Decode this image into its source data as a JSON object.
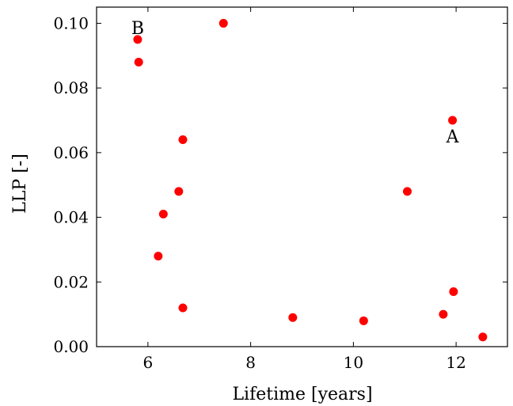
{
  "chart_data": {
    "type": "scatter",
    "xlabel": "Lifetime [years]",
    "ylabel": "LLP [-]",
    "xlim": [
      5.0,
      13.0
    ],
    "ylim": [
      0.0,
      0.105
    ],
    "xticks": [
      6,
      8,
      10,
      12
    ],
    "xtick_labels": [
      "6",
      "8",
      "10",
      "12"
    ],
    "yticks": [
      0.0,
      0.02,
      0.04,
      0.06,
      0.08,
      0.1
    ],
    "ytick_labels": [
      "0.00",
      "0.02",
      "0.04",
      "0.06",
      "0.08",
      "0.10"
    ],
    "grid": false,
    "marker_color": "#ff0000",
    "points": [
      {
        "x": 5.8,
        "y": 0.095
      },
      {
        "x": 5.82,
        "y": 0.088
      },
      {
        "x": 7.47,
        "y": 0.1
      },
      {
        "x": 11.93,
        "y": 0.07
      },
      {
        "x": 6.68,
        "y": 0.064
      },
      {
        "x": 11.05,
        "y": 0.048
      },
      {
        "x": 6.6,
        "y": 0.048
      },
      {
        "x": 6.3,
        "y": 0.041
      },
      {
        "x": 6.2,
        "y": 0.028
      },
      {
        "x": 11.95,
        "y": 0.017
      },
      {
        "x": 6.68,
        "y": 0.012
      },
      {
        "x": 11.75,
        "y": 0.01
      },
      {
        "x": 8.82,
        "y": 0.009
      },
      {
        "x": 10.2,
        "y": 0.008
      },
      {
        "x": 12.52,
        "y": 0.003
      }
    ],
    "annotations": [
      {
        "text": "B",
        "x": 5.8,
        "y": 0.095,
        "position": "above"
      },
      {
        "text": "A",
        "x": 11.93,
        "y": 0.07,
        "position": "below"
      }
    ]
  }
}
